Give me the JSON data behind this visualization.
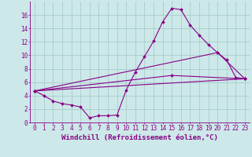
{
  "background_color": "#cce8e8",
  "line_color": "#880088",
  "xlabel": "Windchill (Refroidissement éolien,°C)",
  "xlabel_fontsize": 6.5,
  "tick_color": "#880088",
  "tick_fontsize": 5.5,
  "xlim": [
    -0.5,
    23.5
  ],
  "ylim": [
    0,
    18
  ],
  "yticks": [
    0,
    2,
    4,
    6,
    8,
    10,
    12,
    14,
    16
  ],
  "xticks": [
    0,
    1,
    2,
    3,
    4,
    5,
    6,
    7,
    8,
    9,
    10,
    11,
    12,
    13,
    14,
    15,
    16,
    17,
    18,
    19,
    20,
    21,
    22,
    23
  ],
  "grid_color": "#aacccc",
  "series": [
    {
      "x": [
        0,
        1,
        2,
        3,
        4,
        5,
        6,
        7,
        8,
        9,
        10,
        11,
        12,
        13,
        14,
        15,
        16,
        17,
        18,
        19,
        20,
        21,
        22,
        23
      ],
      "y": [
        4.7,
        4.0,
        3.2,
        2.8,
        2.6,
        2.3,
        0.7,
        1.0,
        1.0,
        1.1,
        4.8,
        7.5,
        9.8,
        12.1,
        15.0,
        17.0,
        16.8,
        14.5,
        13.0,
        11.6,
        10.4,
        9.3,
        6.7,
        6.5
      ]
    },
    {
      "x": [
        0,
        23
      ],
      "y": [
        4.7,
        6.5
      ]
    },
    {
      "x": [
        0,
        20,
        23
      ],
      "y": [
        4.7,
        10.4,
        6.5
      ]
    },
    {
      "x": [
        0,
        15,
        23
      ],
      "y": [
        4.7,
        7.0,
        6.5
      ]
    }
  ]
}
